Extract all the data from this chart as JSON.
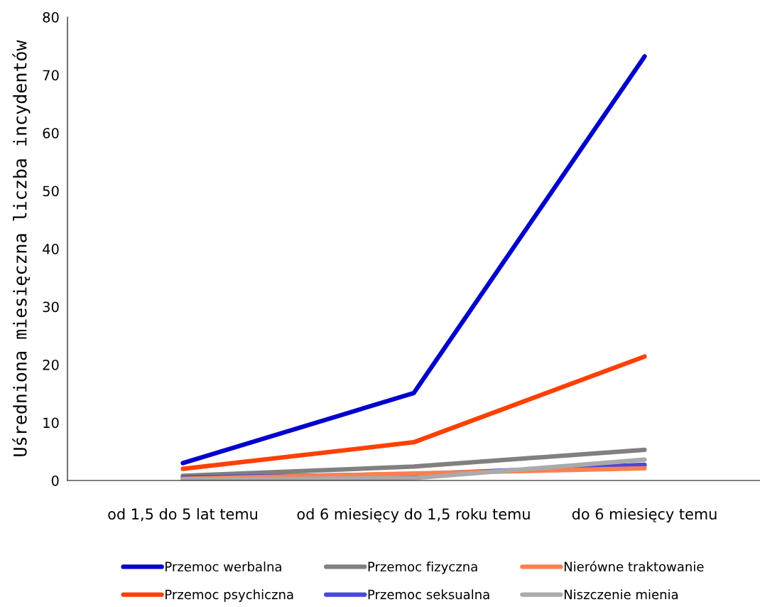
{
  "chart_data": {
    "type": "line",
    "ylabel": "Uśredniona miesięczna liczba incydentów",
    "categories": [
      "od 1,5 do 5 lat temu",
      "od 6 miesięcy do 1,5 roku temu",
      "do 6 miesięcy temu"
    ],
    "ylim": [
      0,
      80
    ],
    "yticks": [
      0,
      10,
      20,
      30,
      40,
      50,
      60,
      70,
      80
    ],
    "grid": false,
    "legend": "bottom",
    "marker": "none",
    "line_style": "solid",
    "series": [
      {
        "name": "Przemoc werbalna",
        "color": "#0000cc",
        "values": [
          3.0,
          15.1,
          73.2
        ]
      },
      {
        "name": "Przemoc psychiczna",
        "color": "#ff4000",
        "values": [
          2.0,
          6.6,
          21.4
        ]
      },
      {
        "name": "Przemoc fizyczna",
        "color": "#808080",
        "values": [
          0.8,
          2.4,
          5.3
        ]
      },
      {
        "name": "Przemoc seksualna",
        "color": "#4848e0",
        "values": [
          0.5,
          1.1,
          2.7
        ]
      },
      {
        "name": "Nierówne traktowanie",
        "color": "#ff7f50",
        "values": [
          0.3,
          1.2,
          2.1
        ]
      },
      {
        "name": "Niszczenie mienia",
        "color": "#aaaaaa",
        "values": [
          0.2,
          0.4,
          3.6
        ]
      }
    ]
  }
}
